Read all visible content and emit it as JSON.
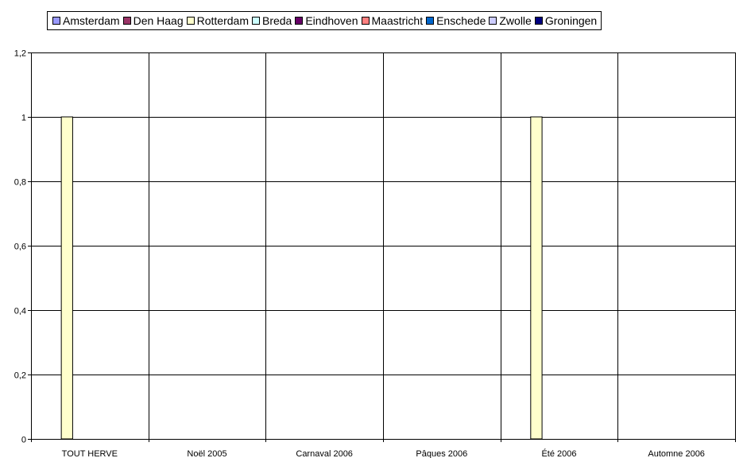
{
  "chart_data": {
    "type": "bar",
    "categories": [
      "TOUT HERVE",
      "Noël 2005",
      "Carnaval 2006",
      "Pâques 2006",
      "Été 2006",
      "Automne 2006"
    ],
    "series": [
      {
        "name": "Amsterdam",
        "color": "#9999ff",
        "values": [
          0,
          0,
          0,
          0,
          0,
          0
        ]
      },
      {
        "name": "Den Haag",
        "color": "#993366",
        "values": [
          0,
          0,
          0,
          0,
          0,
          0
        ]
      },
      {
        "name": "Rotterdam",
        "color": "#ffffcc",
        "values": [
          1,
          0,
          0,
          0,
          1,
          0
        ]
      },
      {
        "name": "Breda",
        "color": "#ccffff",
        "values": [
          0,
          0,
          0,
          0,
          0,
          0
        ]
      },
      {
        "name": "Eindhoven",
        "color": "#660066",
        "values": [
          0,
          0,
          0,
          0,
          0,
          0
        ]
      },
      {
        "name": "Maastricht",
        "color": "#ff8080",
        "values": [
          0,
          0,
          0,
          0,
          0,
          0
        ]
      },
      {
        "name": "Enschede",
        "color": "#0066cc",
        "values": [
          0,
          0,
          0,
          0,
          0,
          0
        ]
      },
      {
        "name": "Zwolle",
        "color": "#ccccff",
        "values": [
          0,
          0,
          0,
          0,
          0,
          0
        ]
      },
      {
        "name": "Groningen",
        "color": "#000080",
        "values": [
          0,
          0,
          0,
          0,
          0,
          0
        ]
      }
    ],
    "yticks": [
      "0",
      "0,2",
      "0,4",
      "0,6",
      "0,8",
      "1",
      "1,2"
    ],
    "ylim": [
      0,
      1.2
    ],
    "title": "",
    "xlabel": "",
    "ylabel": "",
    "grid": true,
    "legend": "top"
  }
}
